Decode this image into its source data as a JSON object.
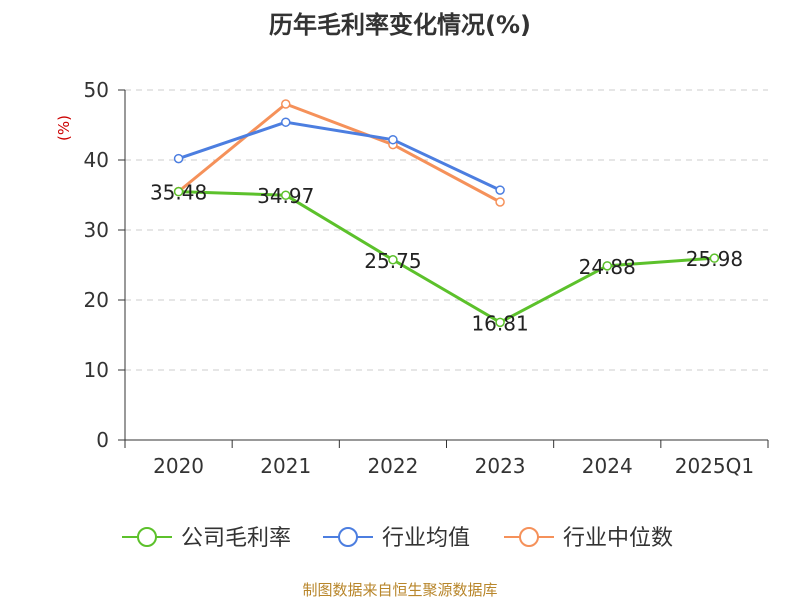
{
  "chart_data": {
    "type": "line",
    "title": "历年毛利率变化情况(%)",
    "ylabel": "(%)",
    "xlabel": "",
    "categories": [
      "2020",
      "2021",
      "2022",
      "2023",
      "2024",
      "2025Q1"
    ],
    "ylim": [
      0,
      50
    ],
    "yticks": [
      0,
      10,
      20,
      30,
      40,
      50
    ],
    "grid": true,
    "legend_position": "bottom",
    "series": [
      {
        "name": "公司毛利率",
        "color": "#5cc12b",
        "values": [
          35.48,
          34.97,
          25.75,
          16.81,
          24.88,
          25.98
        ],
        "labels": [
          "35.48",
          "34.97",
          "25.75",
          "16.81",
          "24.88",
          "25.98"
        ]
      },
      {
        "name": "行业均值",
        "color": "#4c7ee0",
        "values": [
          40.2,
          45.4,
          42.9,
          35.7,
          null,
          null
        ]
      },
      {
        "name": "行业中位数",
        "color": "#f5915a",
        "values": [
          35.5,
          48.0,
          42.2,
          34.0,
          null,
          null
        ]
      }
    ],
    "source": "制图数据来自恒生聚源数据库"
  }
}
